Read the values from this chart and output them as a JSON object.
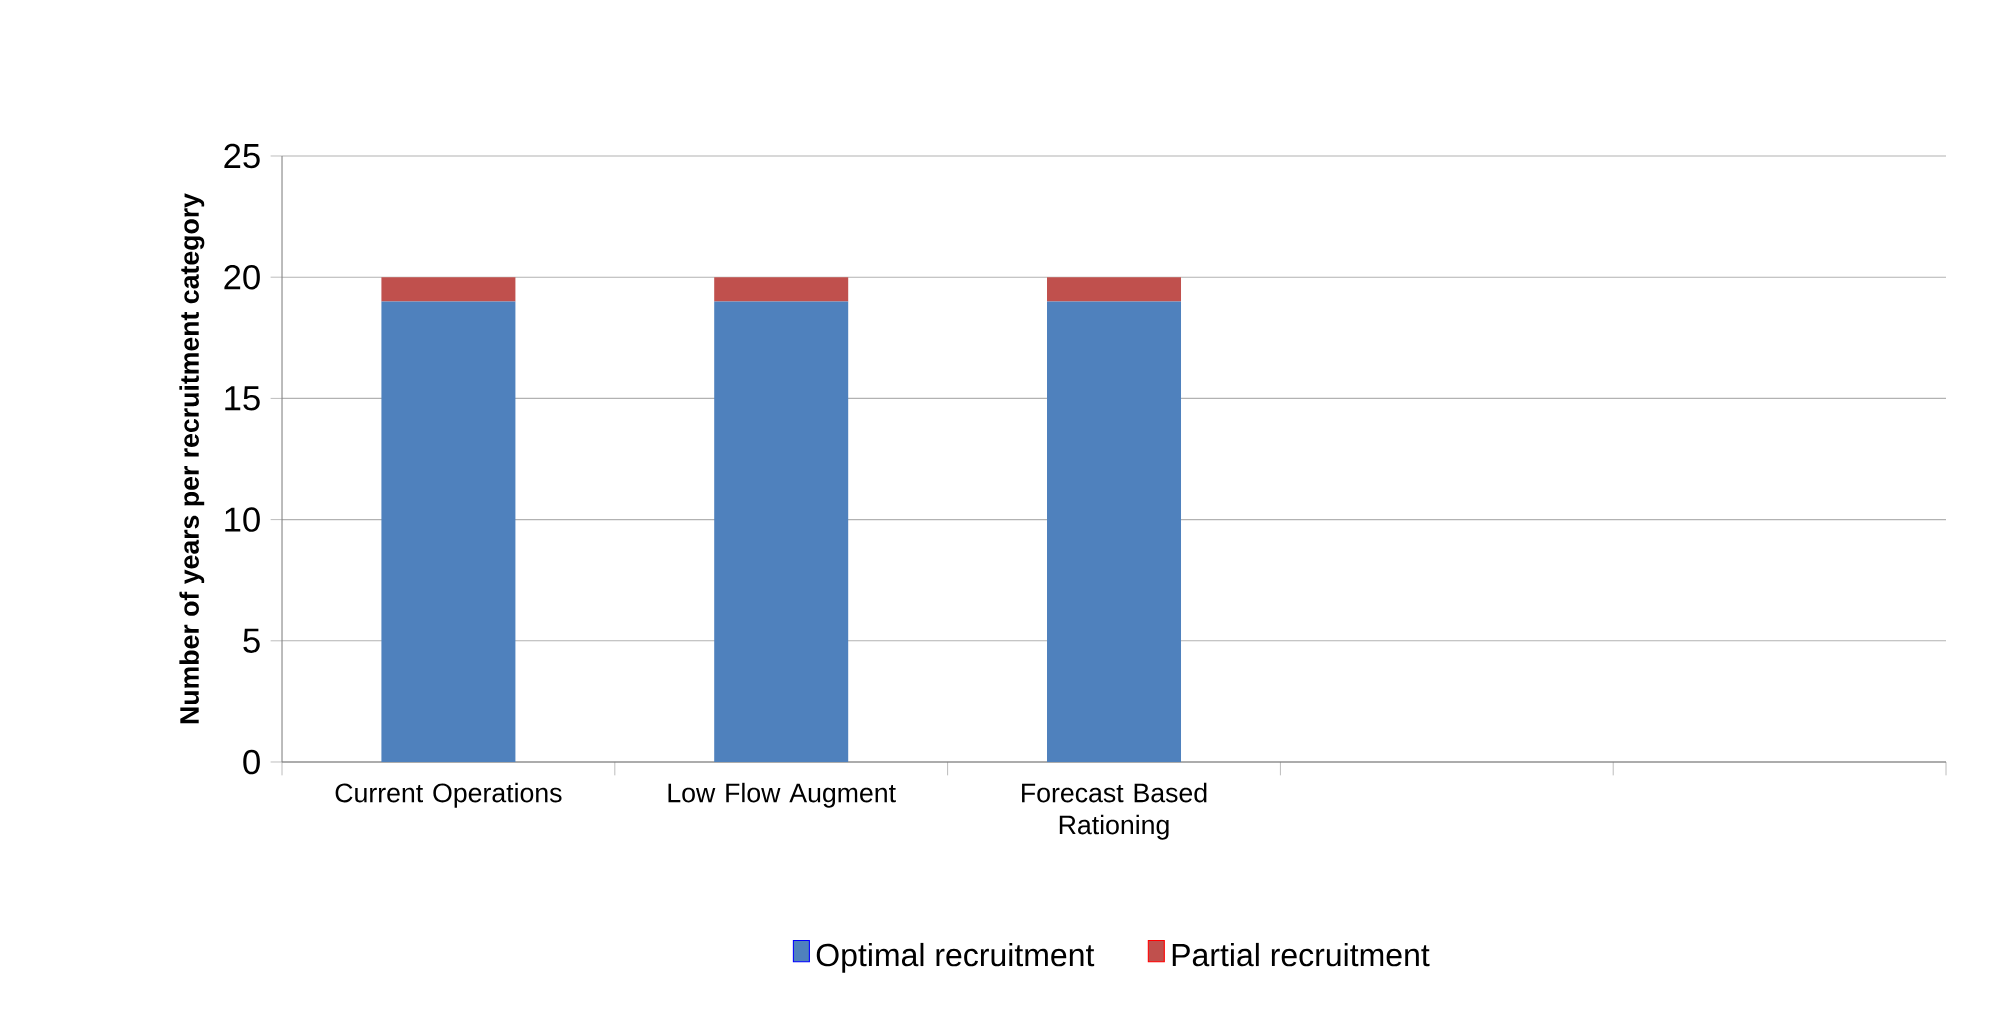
{
  "chart_data": {
    "type": "bar",
    "stacked": true,
    "ylabel": "Number of years per recruitment category",
    "categories": [
      "Current Operations",
      "Low Flow Augment",
      "Forecast Based Rationing",
      null,
      null
    ],
    "series": [
      {
        "name": "Optimal recruitment",
        "color": "#4f81bd",
        "values": [
          19,
          19,
          19,
          null,
          null
        ]
      },
      {
        "name": "Partial recruitment",
        "color": "#c0504d",
        "values": [
          1,
          1,
          1,
          null,
          null
        ]
      }
    ],
    "ylim": [
      0,
      25
    ],
    "yticks": [
      0,
      5,
      10,
      15,
      20,
      25
    ],
    "grid": "y",
    "legend": "bottom"
  }
}
